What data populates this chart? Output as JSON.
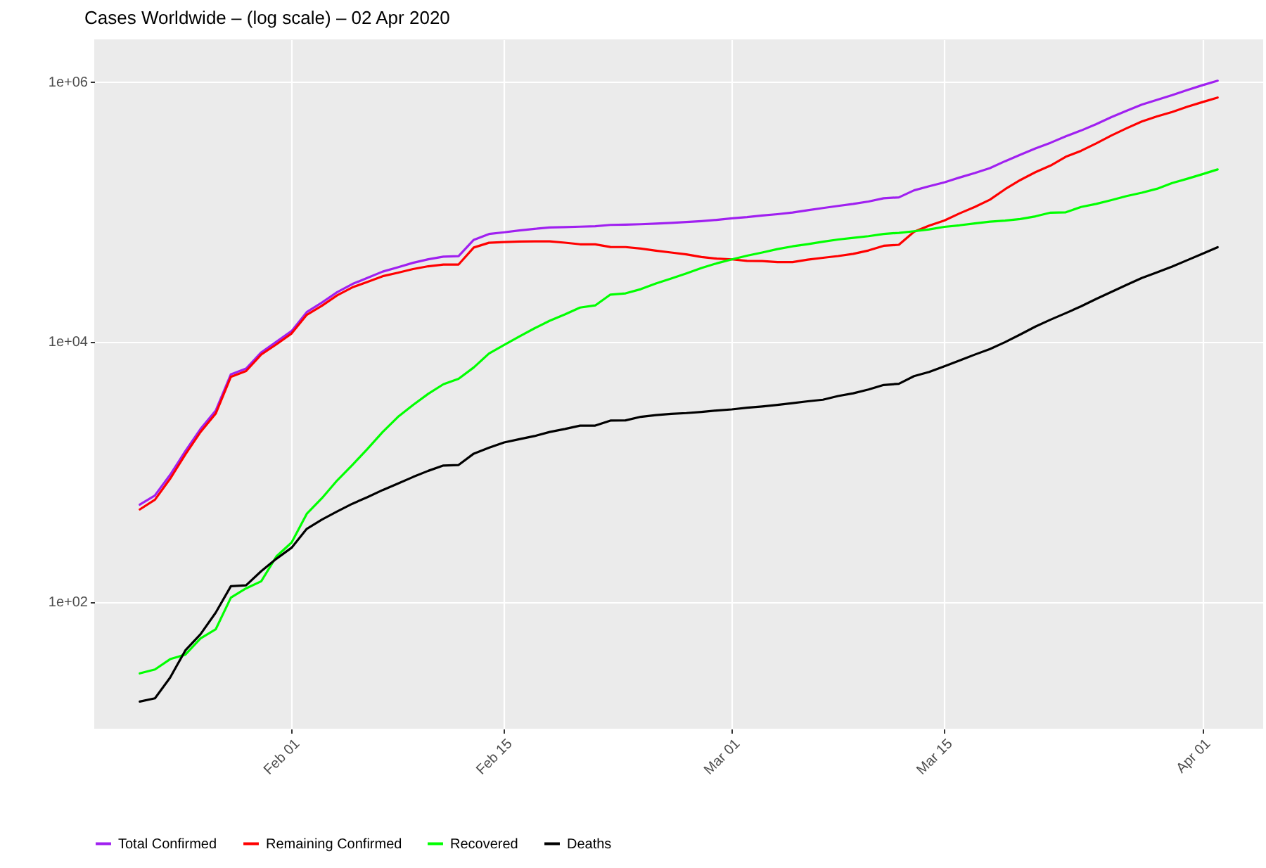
{
  "chart_data": {
    "type": "line",
    "title": "Cases Worldwide – (log scale) – 02 Apr 2020",
    "x": [
      "2020-01-22",
      "2020-01-23",
      "2020-01-24",
      "2020-01-25",
      "2020-01-26",
      "2020-01-27",
      "2020-01-28",
      "2020-01-29",
      "2020-01-30",
      "2020-01-31",
      "2020-02-01",
      "2020-02-02",
      "2020-02-03",
      "2020-02-04",
      "2020-02-05",
      "2020-02-06",
      "2020-02-07",
      "2020-02-08",
      "2020-02-09",
      "2020-02-10",
      "2020-02-11",
      "2020-02-12",
      "2020-02-13",
      "2020-02-14",
      "2020-02-15",
      "2020-02-16",
      "2020-02-17",
      "2020-02-18",
      "2020-02-19",
      "2020-02-20",
      "2020-02-21",
      "2020-02-22",
      "2020-02-23",
      "2020-02-24",
      "2020-02-25",
      "2020-02-26",
      "2020-02-27",
      "2020-02-28",
      "2020-02-29",
      "2020-03-01",
      "2020-03-02",
      "2020-03-03",
      "2020-03-04",
      "2020-03-05",
      "2020-03-06",
      "2020-03-07",
      "2020-03-08",
      "2020-03-09",
      "2020-03-10",
      "2020-03-11",
      "2020-03-12",
      "2020-03-13",
      "2020-03-14",
      "2020-03-15",
      "2020-03-16",
      "2020-03-17",
      "2020-03-18",
      "2020-03-19",
      "2020-03-20",
      "2020-03-21",
      "2020-03-22",
      "2020-03-23",
      "2020-03-24",
      "2020-03-25",
      "2020-03-26",
      "2020-03-27",
      "2020-03-28",
      "2020-03-29",
      "2020-03-30",
      "2020-03-31",
      "2020-04-01",
      "2020-04-02"
    ],
    "series": [
      {
        "name": "Total Confirmed",
        "color": "#a020f0",
        "values": [
          555,
          654,
          941,
          1430,
          2120,
          2930,
          5580,
          6170,
          8230,
          9930,
          12000,
          16800,
          19900,
          23900,
          27600,
          30800,
          34400,
          37100,
          40200,
          42800,
          44800,
          45200,
          60400,
          66900,
          69000,
          71200,
          73300,
          75100,
          75600,
          76200,
          76800,
          78600,
          79000,
          79600,
          80400,
          81400,
          82700,
          84100,
          86000,
          88400,
          90300,
          92800,
          95100,
          97900,
          102000,
          106000,
          110000,
          114000,
          119000,
          126000,
          128000,
          145000,
          156000,
          167000,
          182000,
          197000,
          215000,
          243000,
          272000,
          305000,
          337000,
          378000,
          418000,
          468000,
          530000,
          593000,
          661000,
          720000,
          782000,
          857000,
          933000,
          1010000
        ]
      },
      {
        "name": "Remaining Confirmed",
        "color": "#ff0000",
        "values": [
          510,
          606,
          879,
          1350,
          2010,
          2780,
          5340,
          5910,
          7920,
          9490,
          11500,
          16000,
          18800,
          22600,
          26000,
          28700,
          31700,
          33700,
          36000,
          37800,
          39000,
          39000,
          52700,
          57300,
          58000,
          58600,
          58800,
          58800,
          57400,
          55800,
          55700,
          53200,
          53100,
          51700,
          49800,
          48200,
          46700,
          44500,
          43300,
          42700,
          41600,
          41500,
          40700,
          40700,
          42500,
          43900,
          45300,
          47100,
          50000,
          54300,
          55300,
          69600,
          77700,
          85000,
          96400,
          108000,
          123000,
          148000,
          174000,
          200000,
          225000,
          263000,
          292000,
          333000,
          383000,
          435000,
          491000,
          537000,
          580000,
          637000,
          692000,
          750000
        ]
      },
      {
        "name": "Recovered",
        "color": "#00ff00",
        "values": [
          28,
          30,
          36,
          39,
          52,
          61,
          107,
          126,
          143,
          222,
          284,
          472,
          623,
          852,
          1120,
          1490,
          2010,
          2620,
          3240,
          3950,
          4680,
          5150,
          6300,
          8060,
          9400,
          10900,
          12600,
          14400,
          16100,
          18200,
          18900,
          22900,
          23400,
          25200,
          27900,
          30400,
          33300,
          36700,
          39800,
          42700,
          45600,
          48200,
          51200,
          53800,
          55900,
          58400,
          60700,
          62500,
          64400,
          67000,
          68300,
          70300,
          72600,
          76000,
          78100,
          80800,
          83200,
          84900,
          87300,
          91500,
          97700,
          98300,
          108000,
          114000,
          122000,
          131000,
          139000,
          149000,
          165000,
          178000,
          193000,
          210000
        ]
      },
      {
        "name": "Deaths",
        "color": "#000000",
        "values": [
          17,
          18,
          26,
          42,
          56,
          82,
          131,
          133,
          171,
          213,
          259,
          362,
          426,
          492,
          564,
          634,
          719,
          806,
          906,
          1010,
          1110,
          1120,
          1370,
          1520,
          1670,
          1770,
          1870,
          2010,
          2120,
          2250,
          2250,
          2460,
          2470,
          2630,
          2710,
          2770,
          2810,
          2870,
          2940,
          3000,
          3090,
          3160,
          3250,
          3350,
          3460,
          3560,
          3800,
          3990,
          4260,
          4620,
          4720,
          5400,
          5820,
          6440,
          7130,
          7910,
          8730,
          9870,
          11300,
          13000,
          14700,
          16500,
          18600,
          21200,
          24000,
          27200,
          30700,
          33900,
          37600,
          42100,
          47200,
          53000
        ]
      }
    ],
    "xlim": [
      "2020-01-19",
      "2020-04-05"
    ],
    "xticks": [
      {
        "value": "2020-02-01",
        "label": "Feb 01"
      },
      {
        "value": "2020-02-15",
        "label": "Feb 15"
      },
      {
        "value": "2020-03-01",
        "label": "Mar 01"
      },
      {
        "value": "2020-03-15",
        "label": "Mar 15"
      },
      {
        "value": "2020-04-01",
        "label": "Apr 01"
      }
    ],
    "ylim": [
      10.5,
      2100000
    ],
    "yticks": [
      {
        "value": 100,
        "label": "1e+02"
      },
      {
        "value": 10000,
        "label": "1e+04"
      },
      {
        "value": 1000000,
        "label": "1e+06"
      }
    ],
    "log": "y",
    "grid": true,
    "legend": "bottom",
    "marker": "none",
    "line_style": "solid"
  }
}
